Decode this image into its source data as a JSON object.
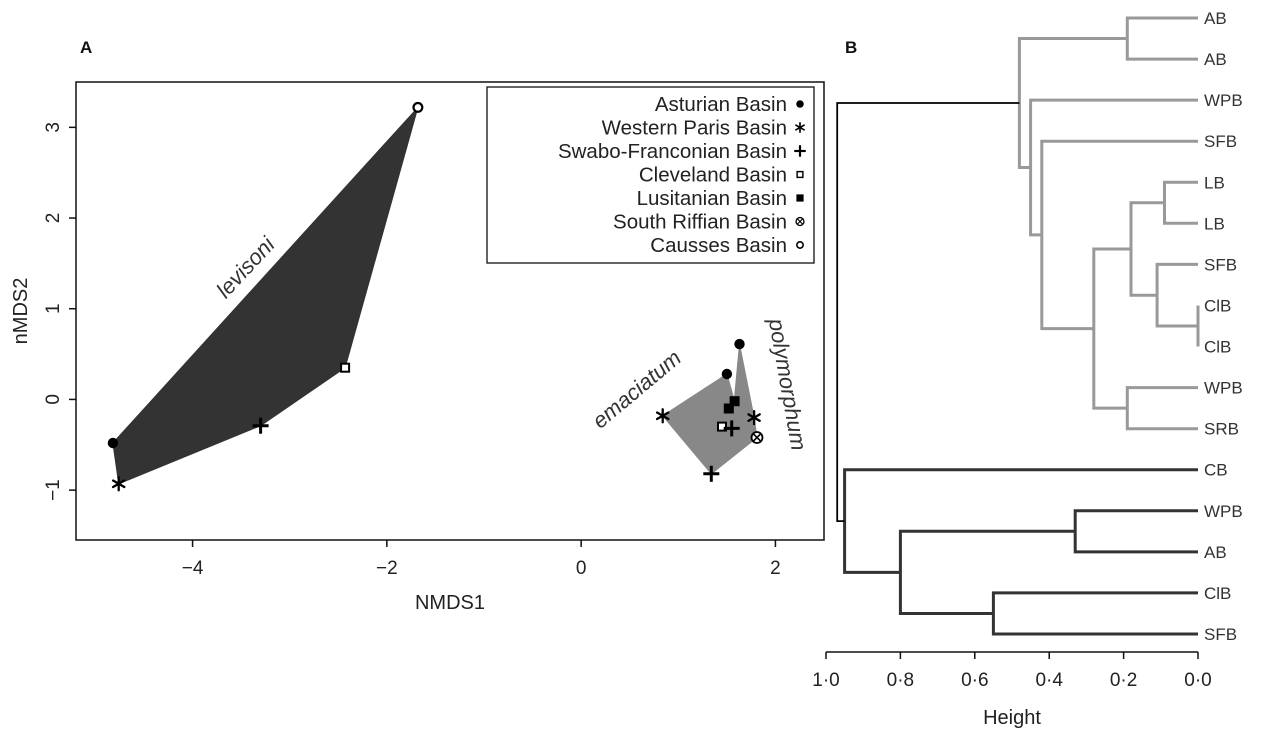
{
  "chart_data": [
    {
      "panel": "A",
      "type": "scatter",
      "xlabel": "NMDS1",
      "ylabel": "nMDS2",
      "xlim": [
        -5.2,
        2.5
      ],
      "ylim": [
        -1.55,
        3.5
      ],
      "xticks": [
        -4,
        -2,
        0,
        2
      ],
      "xtick_labels": [
        "−4",
        "−2",
        "0",
        "2"
      ],
      "yticks": [
        -1,
        0,
        1,
        2,
        3
      ],
      "ytick_labels": [
        "−1",
        "0",
        "1",
        "2",
        "3"
      ],
      "legend_position": "top-right",
      "legend": [
        {
          "label": "Asturian Basin",
          "marker": "dot"
        },
        {
          "label": "Western Paris Basin",
          "marker": "asterisk"
        },
        {
          "label": "Swabo-Franconian Basin",
          "marker": "plus"
        },
        {
          "label": "Cleveland Basin",
          "marker": "open-square"
        },
        {
          "label": "Lusitanian Basin",
          "marker": "filled-square"
        },
        {
          "label": "South Riffian Basin",
          "marker": "circled-cross"
        },
        {
          "label": "Causses Basin",
          "marker": "open-circle"
        }
      ],
      "groups": [
        {
          "name": "levisoni",
          "fill": "#333333",
          "hull": [
            [
              -4.82,
              -0.48
            ],
            [
              -1.68,
              3.22
            ],
            [
              -2.43,
              0.35
            ],
            [
              -3.3,
              -0.29
            ],
            [
              -4.76,
              -0.93
            ]
          ],
          "label_pos": [
            -3.4,
            1.4
          ],
          "label_rot": -47
        },
        {
          "name": "emaciatum",
          "fill": "#888888",
          "hull": [
            [
              0.84,
              -0.18
            ],
            [
              1.5,
              0.28
            ],
            [
              1.58,
              -0.02
            ],
            [
              1.55,
              -0.32
            ],
            [
              1.34,
              -0.82
            ]
          ],
          "label_pos": [
            0.62,
            0.05
          ],
          "label_rot": -40
        },
        {
          "name": "polymorphum",
          "fill": "#888888",
          "hull": [
            [
              1.63,
              0.61
            ],
            [
              1.78,
              -0.2
            ],
            [
              1.81,
              -0.42
            ],
            [
              1.34,
              -0.82
            ],
            [
              1.55,
              -0.32
            ]
          ],
          "label_pos": [
            2.05,
            0.15
          ],
          "label_rot": 80
        }
      ],
      "points": [
        {
          "basin": "Asturian Basin",
          "marker": "dot",
          "x": -4.82,
          "y": -0.48
        },
        {
          "basin": "Western Paris Basin",
          "marker": "asterisk",
          "x": -4.76,
          "y": -0.93
        },
        {
          "basin": "Swabo-Franconian Basin",
          "marker": "plus",
          "x": -3.3,
          "y": -0.29
        },
        {
          "basin": "Cleveland Basin",
          "marker": "open-square",
          "x": -2.43,
          "y": 0.35
        },
        {
          "basin": "Causses Basin",
          "marker": "open-circle",
          "x": -1.68,
          "y": 3.22
        },
        {
          "basin": "Asturian Basin",
          "marker": "dot",
          "x": 1.63,
          "y": 0.61
        },
        {
          "basin": "Asturian Basin",
          "marker": "dot",
          "x": 1.5,
          "y": 0.28
        },
        {
          "basin": "Western Paris Basin",
          "marker": "asterisk",
          "x": 0.84,
          "y": -0.18
        },
        {
          "basin": "Western Paris Basin",
          "marker": "asterisk",
          "x": 1.78,
          "y": -0.2
        },
        {
          "basin": "Lusitanian Basin",
          "marker": "filled-square",
          "x": 1.58,
          "y": -0.02
        },
        {
          "basin": "Lusitanian Basin",
          "marker": "filled-square",
          "x": 1.52,
          "y": -0.1
        },
        {
          "basin": "Cleveland Basin",
          "marker": "open-square",
          "x": 1.45,
          "y": -0.3
        },
        {
          "basin": "Swabo-Franconian Basin",
          "marker": "plus",
          "x": 1.55,
          "y": -0.32
        },
        {
          "basin": "Swabo-Franconian Basin",
          "marker": "plus",
          "x": 1.34,
          "y": -0.82
        },
        {
          "basin": "South Riffian Basin",
          "marker": "circled-cross",
          "x": 1.81,
          "y": -0.42
        }
      ]
    },
    {
      "panel": "B",
      "type": "dendrogram",
      "xlabel": "Height",
      "xlim": [
        1.0,
        0.0
      ],
      "xticks": [
        1.0,
        0.8,
        0.6,
        0.4,
        0.2,
        0.0
      ],
      "xtick_labels": [
        "1·0",
        "0·8",
        "0·6",
        "0·4",
        "0·2",
        "0·0"
      ],
      "leaves": [
        "AB",
        "AB",
        "WPB",
        "SFB",
        "LB",
        "LB",
        "SFB",
        "ClB",
        "ClB",
        "WPB",
        "SRB",
        "CB",
        "WPB",
        "AB",
        "ClB",
        "SFB"
      ],
      "cluster_colors": {
        "upper": "#999999",
        "lower": "#333333",
        "root": "#000000"
      },
      "merges": [
        {
          "left": 0,
          "right": 1,
          "height": 0.19,
          "cluster": "upper"
        },
        {
          "left": 4,
          "right": 5,
          "height": 0.09,
          "cluster": "upper"
        },
        {
          "left": 7,
          "right": 8,
          "height": 0.0,
          "cluster": "upper"
        },
        {
          "left": 6,
          "right": "m2",
          "height": 0.11,
          "cluster": "upper"
        },
        {
          "left": "m1",
          "right": "m3",
          "height": 0.18,
          "cluster": "upper"
        },
        {
          "left": 9,
          "right": 10,
          "height": 0.19,
          "cluster": "upper"
        },
        {
          "left": "m4",
          "right": "m5",
          "height": 0.28,
          "cluster": "upper"
        },
        {
          "left": 3,
          "right": "m6",
          "height": 0.42,
          "cluster": "upper"
        },
        {
          "left": 2,
          "right": "m7",
          "height": 0.45,
          "cluster": "upper"
        },
        {
          "left": "m0",
          "right": "m8",
          "height": 0.48,
          "cluster": "upper"
        },
        {
          "left": 12,
          "right": 13,
          "height": 0.33,
          "cluster": "lower"
        },
        {
          "left": 14,
          "right": 15,
          "height": 0.55,
          "cluster": "lower"
        },
        {
          "left": "m10",
          "right": "m11",
          "height": 0.8,
          "cluster": "lower"
        },
        {
          "left": 11,
          "right": "m12",
          "height": 0.95,
          "cluster": "lower"
        },
        {
          "left": "m9",
          "right": "m13",
          "height": 0.97,
          "cluster": "root"
        }
      ]
    }
  ]
}
